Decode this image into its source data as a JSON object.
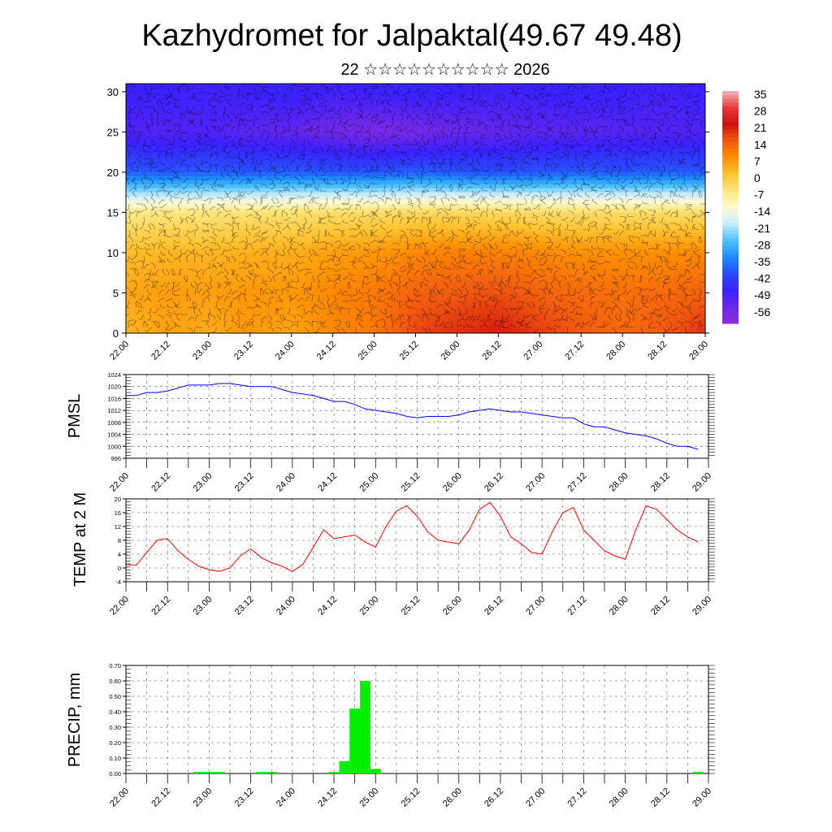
{
  "page": {
    "title": "Kazhydromet for Jalpaktal(49.67 49.48)",
    "subtitle": "22 ☆☆☆☆☆☆☆☆☆☆ 2026"
  },
  "time_ticks": [
    "22.00",
    "22.12",
    "23.00",
    "23.12",
    "24.00",
    "24.12",
    "25.00",
    "25.12",
    "26.00",
    "26.12",
    "27.00",
    "27.12",
    "28.00",
    "28.12",
    "29.00"
  ],
  "chart_data": [
    {
      "type": "heatmap",
      "description_axis": "height",
      "ylim": [
        0,
        31
      ],
      "yticks": [
        0,
        5,
        10,
        15,
        20,
        25,
        30
      ],
      "x": [
        "22.00",
        "22.12",
        "23.00",
        "23.12",
        "24.00",
        "24.12",
        "25.00",
        "25.12",
        "26.00",
        "26.12",
        "27.00",
        "27.12",
        "28.00",
        "28.12",
        "29.00"
      ],
      "y": [
        0,
        5,
        10,
        15,
        20,
        25,
        30
      ],
      "z": [
        [
          2,
          5,
          3,
          6,
          4,
          8,
          10,
          16,
          18,
          20,
          17,
          14,
          12,
          14,
          18
        ],
        [
          4,
          5,
          5,
          6,
          6,
          8,
          10,
          13,
          14,
          15,
          13,
          12,
          11,
          12,
          13
        ],
        [
          1,
          2,
          2,
          3,
          3,
          5,
          6,
          8,
          9,
          9,
          8,
          7,
          7,
          7,
          8
        ],
        [
          -8,
          -7,
          -7,
          -6,
          -6,
          -5,
          -5,
          -4,
          -4,
          -4,
          -5,
          -5,
          -5,
          -5,
          -5
        ],
        [
          -40,
          -41,
          -40,
          -41,
          -40,
          -41,
          -41,
          -40,
          -41,
          -42,
          -41,
          -40,
          -41,
          -40,
          -41
        ],
        [
          -52,
          -53,
          -52,
          -54,
          -55,
          -57,
          -59,
          -58,
          -56,
          -55,
          -54,
          -54,
          -53,
          -53,
          -52
        ],
        [
          -49,
          -49,
          -50,
          -49,
          -48,
          -50,
          -49,
          -48,
          -49,
          -50,
          -49,
          -48,
          -49,
          -50,
          -49
        ]
      ],
      "colorbar": {
        "labels": [
          "35",
          "28",
          "21",
          "14",
          "7",
          "0",
          "-7",
          "-14",
          "-21",
          "-28",
          "-35",
          "-42",
          "-49",
          "-56"
        ],
        "colors": [
          "#f3b8b8",
          "#e83a3a",
          "#d21010",
          "#f05a10",
          "#ff9000",
          "#ffc433",
          "#ffe680",
          "#fffad0",
          "#c8ecff",
          "#4fc3ff",
          "#1e8cff",
          "#2a4bff",
          "#3a20ff",
          "#6a28e8",
          "#8c2ce0"
        ]
      },
      "overlay": "wind barbs"
    },
    {
      "type": "line",
      "ylabel": "PMSL",
      "ylim": [
        996,
        1024
      ],
      "yticks": [
        996,
        1000,
        1004,
        1008,
        1012,
        1016,
        1020,
        1024
      ],
      "color": "#0000ff",
      "x_hours": [
        0,
        3,
        6,
        9,
        12,
        15,
        18,
        21,
        24,
        27,
        30,
        33,
        36,
        39,
        42,
        45,
        48,
        51,
        54,
        57,
        60,
        63,
        66,
        69,
        72,
        75,
        78,
        81,
        84,
        87,
        90,
        93,
        96,
        99,
        102,
        105,
        108,
        111,
        114,
        117,
        120,
        123,
        126,
        129,
        132,
        135,
        138,
        141,
        144,
        147,
        150,
        153,
        156,
        159,
        162,
        165
      ],
      "values": [
        1017,
        1017,
        1018,
        1018,
        1018.5,
        1019.5,
        1020.5,
        1020.5,
        1020.5,
        1021,
        1021,
        1020.5,
        1020,
        1020,
        1020,
        1019,
        1018,
        1017.5,
        1017,
        1016,
        1015,
        1015,
        1014,
        1012.5,
        1012,
        1011.5,
        1011,
        1010,
        1009.5,
        1010,
        1010,
        1010,
        1010.5,
        1011.5,
        1012,
        1012.5,
        1012,
        1011.5,
        1011.5,
        1011,
        1010.5,
        1010,
        1009.5,
        1009.5,
        1007.5,
        1006.5,
        1006.5,
        1005.5,
        1004.5,
        1004,
        1003.5,
        1002.5,
        1001,
        1000,
        1000,
        999
      ]
    },
    {
      "type": "line",
      "ylabel": "TEMP at 2 M",
      "ylim": [
        -4,
        20
      ],
      "yticks": [
        -4,
        0,
        4,
        8,
        12,
        16,
        20
      ],
      "color": "#ff0000",
      "x_hours": [
        0,
        3,
        6,
        9,
        12,
        15,
        18,
        21,
        24,
        27,
        30,
        33,
        36,
        39,
        42,
        45,
        48,
        51,
        54,
        57,
        60,
        63,
        66,
        69,
        72,
        75,
        78,
        81,
        84,
        87,
        90,
        93,
        96,
        99,
        102,
        105,
        108,
        111,
        114,
        117,
        120,
        123,
        126,
        129,
        132,
        135,
        138,
        141,
        144,
        147,
        150,
        153,
        156,
        159,
        162,
        165
      ],
      "values": [
        1,
        0.8,
        4.5,
        8,
        8.5,
        5,
        2.5,
        0.5,
        -0.5,
        -1,
        0,
        3.5,
        5.5,
        3,
        1.5,
        0.5,
        -1,
        1,
        6,
        11,
        8.5,
        9,
        9.5,
        7.5,
        6,
        12,
        16.5,
        18,
        15,
        10.5,
        8,
        7.5,
        7,
        11,
        17,
        19,
        15,
        9,
        7,
        4.5,
        4,
        10.5,
        16,
        17.5,
        11,
        8,
        5,
        3.5,
        2.5,
        11,
        18,
        17,
        14,
        11,
        9,
        7.5
      ]
    },
    {
      "type": "bar",
      "ylabel": "PRECIP, mm",
      "ylim": [
        0,
        0.7
      ],
      "yticks": [
        "0.00",
        "0.10",
        "0.20",
        "0.30",
        "0.40",
        "0.50",
        "0.60",
        "0.70"
      ],
      "color": "#00ee00",
      "x_hours": [
        21,
        24,
        27,
        39,
        42,
        60,
        63,
        66,
        69,
        72,
        165
      ],
      "values": [
        0.01,
        0.01,
        0.01,
        0.01,
        0.01,
        0.01,
        0.08,
        0.42,
        0.6,
        0.03,
        0.01
      ]
    }
  ]
}
